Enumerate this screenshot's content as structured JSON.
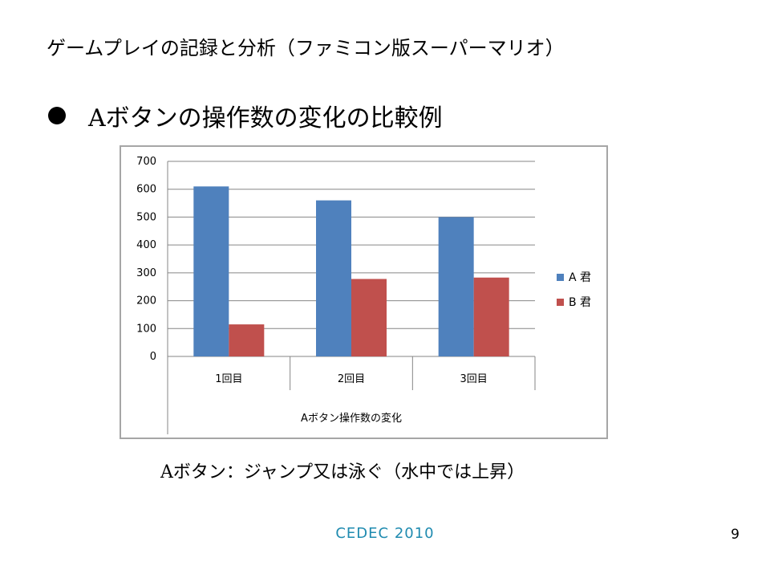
{
  "slide": {
    "title": "ゲームプレイの記録と分析（ファミコン版スーパーマリオ）",
    "bullet": "Aボタンの操作数の変化の比較例",
    "caption": "Aボタン：ジャンプ又は泳ぐ（水中では上昇）",
    "footer": "CEDEC  2010",
    "page_number": "9"
  },
  "chart_data": {
    "type": "bar",
    "categories": [
      "1回目",
      "2回目",
      "3回目"
    ],
    "series": [
      {
        "name": "A 君",
        "values": [
          610,
          560,
          500
        ],
        "color": "#4f81bd"
      },
      {
        "name": "B 君",
        "values": [
          115,
          278,
          283
        ],
        "color": "#c0504d"
      }
    ],
    "xlabel": "Aボタン操作数の変化",
    "ylabel": "",
    "ylim": [
      0,
      700
    ],
    "yticks": [
      0,
      100,
      200,
      300,
      400,
      500,
      600,
      700
    ],
    "grid": true,
    "legend": "right"
  }
}
